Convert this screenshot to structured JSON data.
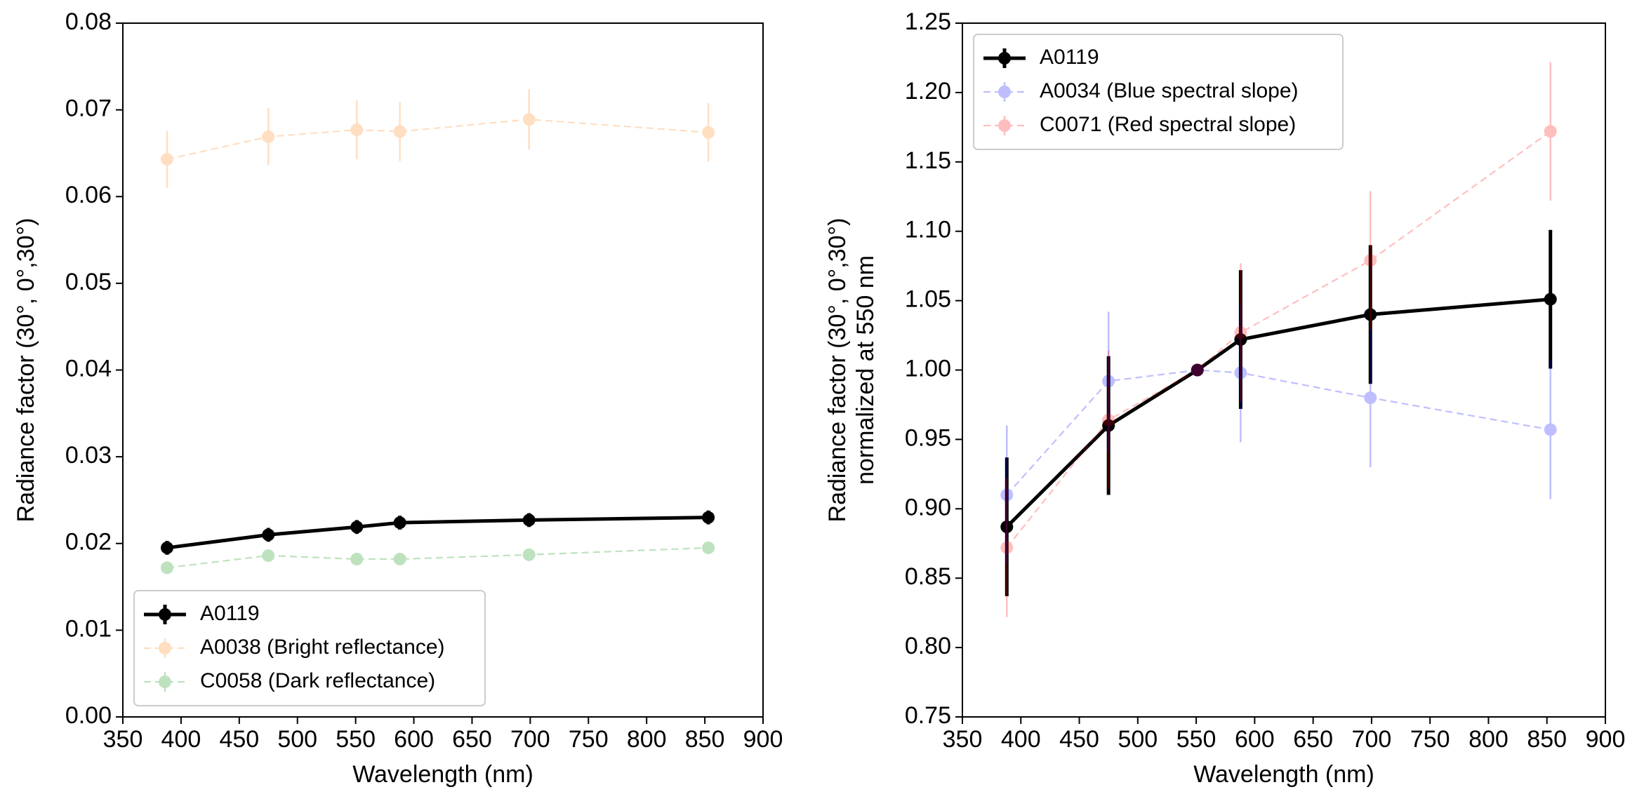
{
  "chart_data": [
    {
      "type": "line",
      "xlabel": "Wavelength (nm)",
      "ylabel": [
        "Radiance factor (30°, 0°,30°)"
      ],
      "xlim": [
        350,
        900
      ],
      "xticks": [
        350,
        400,
        450,
        500,
        550,
        600,
        650,
        700,
        750,
        800,
        850,
        900
      ],
      "ylim": [
        0,
        0.08
      ],
      "yticks": [
        {
          "value": 0,
          "label": "0.00"
        },
        0.01,
        0.02,
        0.03,
        0.04,
        0.05,
        0.06,
        0.07,
        0.08
      ],
      "legend": "lower left",
      "x": [
        388,
        475,
        551,
        588,
        699,
        853
      ],
      "series": [
        {
          "name": "A0119",
          "color": "#000000",
          "alpha": 1,
          "linestyle": "solid",
          "values": [
            0.0195,
            0.021,
            0.0219,
            0.0224,
            0.0227,
            0.023
          ],
          "errors": [
            0.0008,
            0.0008,
            0.0008,
            0.0008,
            0.0008,
            0.0008
          ]
        },
        {
          "name": "A0038 (Bright reflectance)",
          "color": "#ff7f0e",
          "alpha": 0.25,
          "linestyle": "dashed",
          "values": [
            0.0643,
            0.0669,
            0.0677,
            0.0675,
            0.0689,
            0.0674
          ],
          "errors": [
            0.0033,
            0.0033,
            0.0034,
            0.0034,
            0.0035,
            0.0034
          ]
        },
        {
          "name": "C0058 (Dark reflectance)",
          "color": "#2ca02c",
          "alpha": 0.3,
          "linestyle": "dashed",
          "values": [
            0.0172,
            0.0186,
            0.0182,
            0.0182,
            0.0187,
            0.0195
          ],
          "errors": [
            0.0005,
            0.0005,
            0.0005,
            0.0005,
            0.0005,
            0.0005
          ]
        }
      ]
    },
    {
      "type": "line",
      "xlabel": "Wavelength (nm)",
      "ylabel": [
        "Radiance factor (30°, 0°,30°)",
        "normalized at 550 nm"
      ],
      "xlim": [
        350,
        900
      ],
      "xticks": [
        350,
        400,
        450,
        500,
        550,
        600,
        650,
        700,
        750,
        800,
        850,
        900
      ],
      "ylim": [
        0.75,
        1.25
      ],
      "yticks": [
        0.75,
        {
          "value": 0.8,
          "label": "0.80"
        },
        0.85,
        {
          "value": 0.9,
          "label": "0.90"
        },
        0.95,
        {
          "value": 1,
          "label": "1.00"
        },
        1.05,
        {
          "value": 1.1,
          "label": "1.10"
        },
        1.15,
        {
          "value": 1.2,
          "label": "1.20"
        },
        1.25
      ],
      "legend": "upper left",
      "x": [
        388,
        475,
        551,
        588,
        699,
        853
      ],
      "series": [
        {
          "name": "A0119",
          "color": "#000000",
          "alpha": 1,
          "linestyle": "solid",
          "values": [
            0.887,
            0.96,
            1.0,
            1.022,
            1.04,
            1.051
          ],
          "errors": [
            0.05,
            0.05,
            0,
            0.05,
            0.05,
            0.05
          ]
        },
        {
          "name": "A0034 (Blue spectral slope)",
          "color": "#0000ff",
          "alpha": 0.25,
          "linestyle": "dashed",
          "values": [
            0.91,
            0.992,
            1.0,
            0.998,
            0.98,
            0.957
          ],
          "errors": [
            0.05,
            0.05,
            0,
            0.05,
            0.05,
            0.05
          ]
        },
        {
          "name": "C0071 (Red spectral slope)",
          "color": "#ff0000",
          "alpha": 0.25,
          "linestyle": "dashed",
          "values": [
            0.872,
            0.964,
            1.0,
            1.027,
            1.079,
            1.172
          ],
          "errors": [
            0.05,
            0.05,
            0,
            0.05,
            0.05,
            0.05
          ]
        }
      ]
    }
  ]
}
